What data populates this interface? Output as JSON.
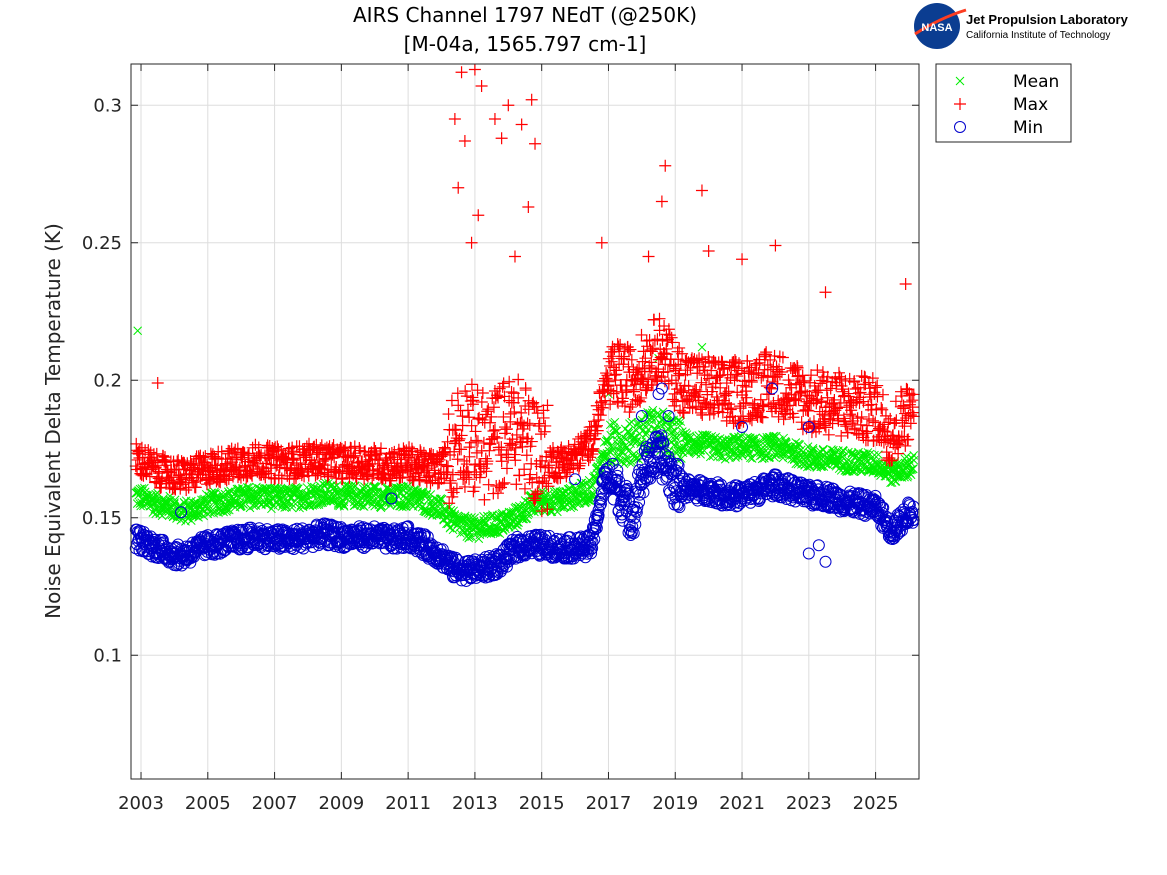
{
  "header": {
    "title_line1": "AIRS Channel 1797 NEdT (@250K)",
    "title_line2": "[M-04a, 1565.797 cm-1]"
  },
  "logo": {
    "mark_text": "NASA",
    "title": "Jet Propulsion Laboratory",
    "subtitle": "California Institute of Technology"
  },
  "colors": {
    "mean": "#00ee00",
    "max": "#ff0000",
    "min": "#0000cc",
    "grid": "#dddddd"
  },
  "chart_data": {
    "type": "scatter",
    "title": "AIRS Channel 1797 NEdT (@250K) [M-04a, 1565.797 cm-1]",
    "xlabel": "",
    "ylabel": "Noise Equivalent Delta Temperature (K)",
    "xlim": [
      2002.7,
      2026.3
    ],
    "ylim": [
      0.055,
      0.315
    ],
    "x_ticks": [
      2003,
      2005,
      2007,
      2009,
      2011,
      2013,
      2015,
      2017,
      2019,
      2021,
      2023,
      2025
    ],
    "y_ticks": [
      0.1,
      0.15,
      0.2,
      0.25,
      0.3
    ],
    "y_tick_labels": [
      "0.1",
      "0.15",
      "0.2",
      "0.25",
      "0.3"
    ],
    "grid": true,
    "legend_position": "outside-right-top",
    "series": [
      {
        "name": "Mean",
        "marker": "x",
        "x": [
          2002.8,
          2003.1,
          2003.5,
          2003.9,
          2004.2,
          2004.6,
          2005.0,
          2005.5,
          2006.0,
          2006.5,
          2007.0,
          2007.5,
          2008.0,
          2008.5,
          2009.0,
          2009.5,
          2010.0,
          2010.5,
          2011.0,
          2011.5,
          2012.0,
          2012.3,
          2012.6,
          2013.0,
          2013.4,
          2013.8,
          2014.2,
          2014.6,
          2015.0,
          2015.5,
          2016.0,
          2016.5,
          2016.9,
          2017.3,
          2017.7,
          2018.0,
          2018.3,
          2018.6,
          2019.0,
          2019.5,
          2020.0,
          2020.5,
          2021.0,
          2021.5,
          2022.0,
          2022.5,
          2023.0,
          2023.5,
          2024.0,
          2024.5,
          2025.0,
          2025.5,
          2026.0
        ],
        "y": [
          0.158,
          0.157,
          0.155,
          0.154,
          0.152,
          0.153,
          0.155,
          0.156,
          0.157,
          0.158,
          0.157,
          0.157,
          0.158,
          0.159,
          0.158,
          0.158,
          0.158,
          0.157,
          0.158,
          0.156,
          0.153,
          0.149,
          0.147,
          0.146,
          0.147,
          0.148,
          0.15,
          0.154,
          0.156,
          0.156,
          0.158,
          0.16,
          0.175,
          0.178,
          0.177,
          0.18,
          0.182,
          0.181,
          0.178,
          0.177,
          0.176,
          0.175,
          0.176,
          0.175,
          0.176,
          0.174,
          0.172,
          0.171,
          0.171,
          0.17,
          0.17,
          0.166,
          0.169
        ],
        "outliers": [
          [
            2002.9,
            0.218
          ],
          [
            2017.0,
            0.195
          ],
          [
            2018.5,
            0.208
          ],
          [
            2019.8,
            0.212
          ]
        ]
      },
      {
        "name": "Max",
        "marker": "+",
        "x": [
          2002.8,
          2003.1,
          2003.5,
          2003.9,
          2004.2,
          2004.6,
          2005.0,
          2005.5,
          2006.0,
          2006.5,
          2007.0,
          2007.5,
          2008.0,
          2008.5,
          2009.0,
          2009.5,
          2010.0,
          2010.5,
          2011.0,
          2011.5,
          2012.0,
          2012.3,
          2012.6,
          2013.0,
          2013.4,
          2013.8,
          2014.2,
          2014.6,
          2015.0,
          2015.5,
          2016.0,
          2016.5,
          2016.9,
          2017.3,
          2017.7,
          2018.0,
          2018.3,
          2018.6,
          2019.0,
          2019.5,
          2020.0,
          2020.5,
          2021.0,
          2021.5,
          2022.0,
          2022.5,
          2023.0,
          2023.5,
          2024.0,
          2024.5,
          2025.0,
          2025.5,
          2026.0
        ],
        "y": [
          0.172,
          0.17,
          0.167,
          0.166,
          0.165,
          0.166,
          0.168,
          0.169,
          0.17,
          0.171,
          0.17,
          0.17,
          0.171,
          0.171,
          0.17,
          0.17,
          0.17,
          0.169,
          0.17,
          0.168,
          0.168,
          0.175,
          0.182,
          0.178,
          0.175,
          0.18,
          0.182,
          0.178,
          0.172,
          0.17,
          0.172,
          0.178,
          0.198,
          0.202,
          0.2,
          0.205,
          0.21,
          0.212,
          0.202,
          0.198,
          0.197,
          0.195,
          0.196,
          0.198,
          0.199,
          0.196,
          0.192,
          0.192,
          0.191,
          0.19,
          0.189,
          0.18,
          0.19
        ],
        "outliers": [
          [
            2003.5,
            0.199
          ],
          [
            2012.6,
            0.312
          ],
          [
            2013.0,
            0.313
          ],
          [
            2013.2,
            0.307
          ],
          [
            2014.0,
            0.3
          ],
          [
            2014.7,
            0.302
          ],
          [
            2012.4,
            0.295
          ],
          [
            2013.6,
            0.295
          ],
          [
            2014.4,
            0.293
          ],
          [
            2012.7,
            0.287
          ],
          [
            2013.8,
            0.288
          ],
          [
            2014.8,
            0.286
          ],
          [
            2012.5,
            0.27
          ],
          [
            2013.1,
            0.26
          ],
          [
            2014.6,
            0.263
          ],
          [
            2016.8,
            0.25
          ],
          [
            2018.7,
            0.278
          ],
          [
            2018.6,
            0.265
          ],
          [
            2019.8,
            0.269
          ],
          [
            2022.0,
            0.249
          ],
          [
            2025.9,
            0.235
          ],
          [
            2012.9,
            0.25
          ],
          [
            2014.2,
            0.245
          ],
          [
            2018.2,
            0.245
          ],
          [
            2020.0,
            0.247
          ],
          [
            2021.0,
            0.244
          ],
          [
            2023.5,
            0.232
          ]
        ]
      },
      {
        "name": "Min",
        "marker": "o",
        "x": [
          2002.8,
          2003.1,
          2003.5,
          2003.9,
          2004.2,
          2004.6,
          2005.0,
          2005.5,
          2006.0,
          2006.5,
          2007.0,
          2007.5,
          2008.0,
          2008.5,
          2009.0,
          2009.5,
          2010.0,
          2010.5,
          2011.0,
          2011.5,
          2012.0,
          2012.3,
          2012.6,
          2013.0,
          2013.4,
          2013.8,
          2014.2,
          2014.6,
          2015.0,
          2015.5,
          2016.0,
          2016.5,
          2016.9,
          2017.3,
          2017.7,
          2018.0,
          2018.3,
          2018.6,
          2019.0,
          2019.5,
          2020.0,
          2020.5,
          2021.0,
          2021.5,
          2022.0,
          2022.5,
          2023.0,
          2023.5,
          2024.0,
          2024.5,
          2025.0,
          2025.5,
          2026.0
        ],
        "y": [
          0.143,
          0.141,
          0.139,
          0.137,
          0.136,
          0.138,
          0.14,
          0.141,
          0.142,
          0.143,
          0.142,
          0.142,
          0.143,
          0.144,
          0.143,
          0.143,
          0.143,
          0.142,
          0.143,
          0.14,
          0.136,
          0.132,
          0.131,
          0.131,
          0.132,
          0.134,
          0.139,
          0.14,
          0.14,
          0.139,
          0.139,
          0.14,
          0.165,
          0.16,
          0.15,
          0.165,
          0.172,
          0.172,
          0.162,
          0.16,
          0.16,
          0.158,
          0.158,
          0.16,
          0.162,
          0.16,
          0.158,
          0.158,
          0.156,
          0.155,
          0.154,
          0.145,
          0.152
        ],
        "outliers": [
          [
            2004.2,
            0.152
          ],
          [
            2010.5,
            0.157
          ],
          [
            2016.0,
            0.164
          ],
          [
            2017.5,
            0.16
          ],
          [
            2018.0,
            0.187
          ],
          [
            2018.5,
            0.195
          ],
          [
            2018.6,
            0.197
          ],
          [
            2018.8,
            0.187
          ],
          [
            2021.0,
            0.183
          ],
          [
            2021.9,
            0.197
          ],
          [
            2023.0,
            0.183
          ],
          [
            2023.0,
            0.137
          ],
          [
            2023.5,
            0.134
          ],
          [
            2023.3,
            0.14
          ]
        ]
      }
    ]
  }
}
